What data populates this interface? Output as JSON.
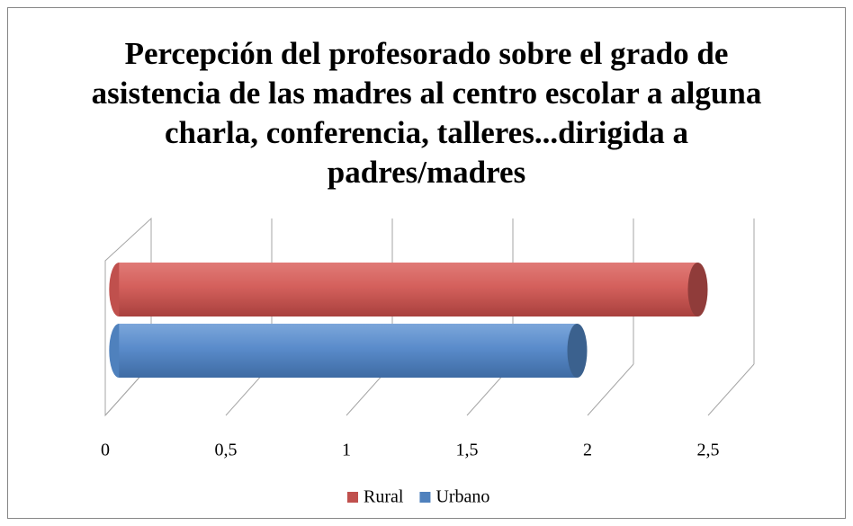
{
  "chart_data": {
    "type": "bar3d-horizontal",
    "title": "Percepción del profesorado sobre el grado de asistencia de las madres al centro escolar a alguna charla, conferencia, talleres...dirigida a padres/madres",
    "categories": [
      null
    ],
    "series": [
      {
        "name": "Rural",
        "color": "#c0504d",
        "values": [
          2.4
        ]
      },
      {
        "name": "Urbano",
        "color": "#4f81bd",
        "values": [
          1.9
        ]
      }
    ],
    "xlim": [
      0,
      2.5
    ],
    "xticks": [
      0,
      {
        "value": 0.5,
        "label": "0,5"
      },
      1,
      {
        "value": 1.5,
        "label": "1,5"
      },
      2,
      {
        "value": 2.5,
        "label": "2,5"
      }
    ],
    "grid": true,
    "legend": "bottom"
  }
}
